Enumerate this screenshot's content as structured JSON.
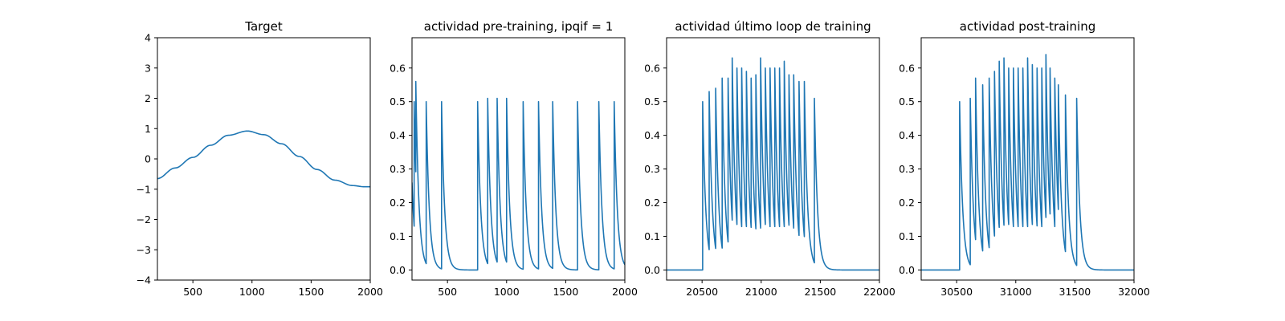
{
  "colors": {
    "line": "#1f77b4"
  },
  "chart_data": [
    {
      "type": "line",
      "title": "Target",
      "xlim": [
        200,
        2000
      ],
      "ylim": [
        -4,
        4
      ],
      "xticks": [
        500,
        1000,
        1500,
        2000
      ],
      "yticks": [
        -4,
        -3,
        -2,
        -1,
        0,
        1,
        2,
        3,
        4
      ],
      "xtick_labels": [
        "500",
        "1000",
        "1500",
        "2000"
      ],
      "ytick_labels": [
        "−4",
        "−3",
        "−2",
        "−1",
        "0",
        "1",
        "2",
        "3",
        "4"
      ],
      "series": [
        {
          "x": [
            200,
            350,
            500,
            650,
            800,
            960,
            1100,
            1250,
            1400,
            1550,
            1700,
            1850,
            1950,
            2000
          ],
          "y": [
            -0.65,
            -0.3,
            0.05,
            0.45,
            0.78,
            0.92,
            0.8,
            0.5,
            0.08,
            -0.35,
            -0.7,
            -0.88,
            -0.92,
            -0.92
          ]
        }
      ]
    },
    {
      "type": "line",
      "title": "actividad pre-training, ipqif = 1",
      "xlim": [
        200,
        2000
      ],
      "ylim": [
        -0.03,
        0.69
      ],
      "xticks": [
        500,
        1000,
        1500,
        2000
      ],
      "yticks": [
        0.0,
        0.1,
        0.2,
        0.3,
        0.4,
        0.5,
        0.6
      ],
      "xtick_labels": [
        "500",
        "1000",
        "1500",
        "2000"
      ],
      "ytick_labels": [
        "0.0",
        "0.1",
        "0.2",
        "0.3",
        "0.4",
        "0.5",
        "0.6"
      ],
      "start_level": 0.26,
      "baseline": 0.0,
      "decay": 26,
      "spikes": [
        {
          "t": 218,
          "peak": 0.5
        },
        {
          "t": 232,
          "peak": 0.56
        },
        {
          "t": 320,
          "peak": 0.5
        },
        {
          "t": 450,
          "peak": 0.5
        },
        {
          "t": 755,
          "peak": 0.5
        },
        {
          "t": 840,
          "peak": 0.51
        },
        {
          "t": 920,
          "peak": 0.51
        },
        {
          "t": 1000,
          "peak": 0.51
        },
        {
          "t": 1140,
          "peak": 0.5
        },
        {
          "t": 1270,
          "peak": 0.5
        },
        {
          "t": 1390,
          "peak": 0.5
        },
        {
          "t": 1600,
          "peak": 0.5
        },
        {
          "t": 1780,
          "peak": 0.5
        },
        {
          "t": 1910,
          "peak": 0.5
        }
      ]
    },
    {
      "type": "line",
      "title": "actividad último loop de training",
      "xlim": [
        20200,
        22000
      ],
      "ylim": [
        -0.03,
        0.69
      ],
      "xticks": [
        20500,
        21000,
        21500,
        22000
      ],
      "yticks": [
        0.0,
        0.1,
        0.2,
        0.3,
        0.4,
        0.5,
        0.6
      ],
      "xtick_labels": [
        "20500",
        "21000",
        "21500",
        "22000"
      ],
      "ytick_labels": [
        "0.0",
        "0.1",
        "0.2",
        "0.3",
        "0.4",
        "0.5",
        "0.6"
      ],
      "start_level": 0.0,
      "baseline": 0.0,
      "decay": 26,
      "spikes": [
        {
          "t": 20505,
          "peak": 0.5
        },
        {
          "t": 20560,
          "peak": 0.53
        },
        {
          "t": 20615,
          "peak": 0.54
        },
        {
          "t": 20670,
          "peak": 0.57
        },
        {
          "t": 20720,
          "peak": 0.57
        },
        {
          "t": 20755,
          "peak": 0.63
        },
        {
          "t": 20795,
          "peak": 0.6
        },
        {
          "t": 20835,
          "peak": 0.6
        },
        {
          "t": 20875,
          "peak": 0.59
        },
        {
          "t": 20915,
          "peak": 0.57
        },
        {
          "t": 20955,
          "peak": 0.58
        },
        {
          "t": 20995,
          "peak": 0.63
        },
        {
          "t": 21035,
          "peak": 0.6
        },
        {
          "t": 21075,
          "peak": 0.6
        },
        {
          "t": 21115,
          "peak": 0.6
        },
        {
          "t": 21155,
          "peak": 0.6
        },
        {
          "t": 21195,
          "peak": 0.62
        },
        {
          "t": 21235,
          "peak": 0.58
        },
        {
          "t": 21275,
          "peak": 0.58
        },
        {
          "t": 21320,
          "peak": 0.56
        },
        {
          "t": 21365,
          "peak": 0.56
        },
        {
          "t": 21450,
          "peak": 0.51
        }
      ]
    },
    {
      "type": "line",
      "title": "actividad post-training",
      "xlim": [
        30200,
        32000
      ],
      "ylim": [
        -0.03,
        0.69
      ],
      "xticks": [
        30500,
        31000,
        31500,
        32000
      ],
      "yticks": [
        0.0,
        0.1,
        0.2,
        0.3,
        0.4,
        0.5,
        0.6
      ],
      "xtick_labels": [
        "30500",
        "31000",
        "31500",
        "32000"
      ],
      "ytick_labels": [
        "0.0",
        "0.1",
        "0.2",
        "0.3",
        "0.4",
        "0.5",
        "0.6"
      ],
      "start_level": 0.0,
      "baseline": 0.0,
      "decay": 26,
      "spikes": [
        {
          "t": 30525,
          "peak": 0.5
        },
        {
          "t": 30615,
          "peak": 0.51
        },
        {
          "t": 30660,
          "peak": 0.57
        },
        {
          "t": 30720,
          "peak": 0.55
        },
        {
          "t": 30775,
          "peak": 0.57
        },
        {
          "t": 30820,
          "peak": 0.59
        },
        {
          "t": 30860,
          "peak": 0.62
        },
        {
          "t": 30900,
          "peak": 0.63
        },
        {
          "t": 30940,
          "peak": 0.6
        },
        {
          "t": 30980,
          "peak": 0.6
        },
        {
          "t": 31020,
          "peak": 0.6
        },
        {
          "t": 31060,
          "peak": 0.6
        },
        {
          "t": 31100,
          "peak": 0.63
        },
        {
          "t": 31140,
          "peak": 0.61
        },
        {
          "t": 31180,
          "peak": 0.6
        },
        {
          "t": 31220,
          "peak": 0.6
        },
        {
          "t": 31255,
          "peak": 0.64
        },
        {
          "t": 31290,
          "peak": 0.6
        },
        {
          "t": 31330,
          "peak": 0.57
        },
        {
          "t": 31360,
          "peak": 0.55
        },
        {
          "t": 31420,
          "peak": 0.52
        },
        {
          "t": 31515,
          "peak": 0.51
        }
      ]
    }
  ]
}
